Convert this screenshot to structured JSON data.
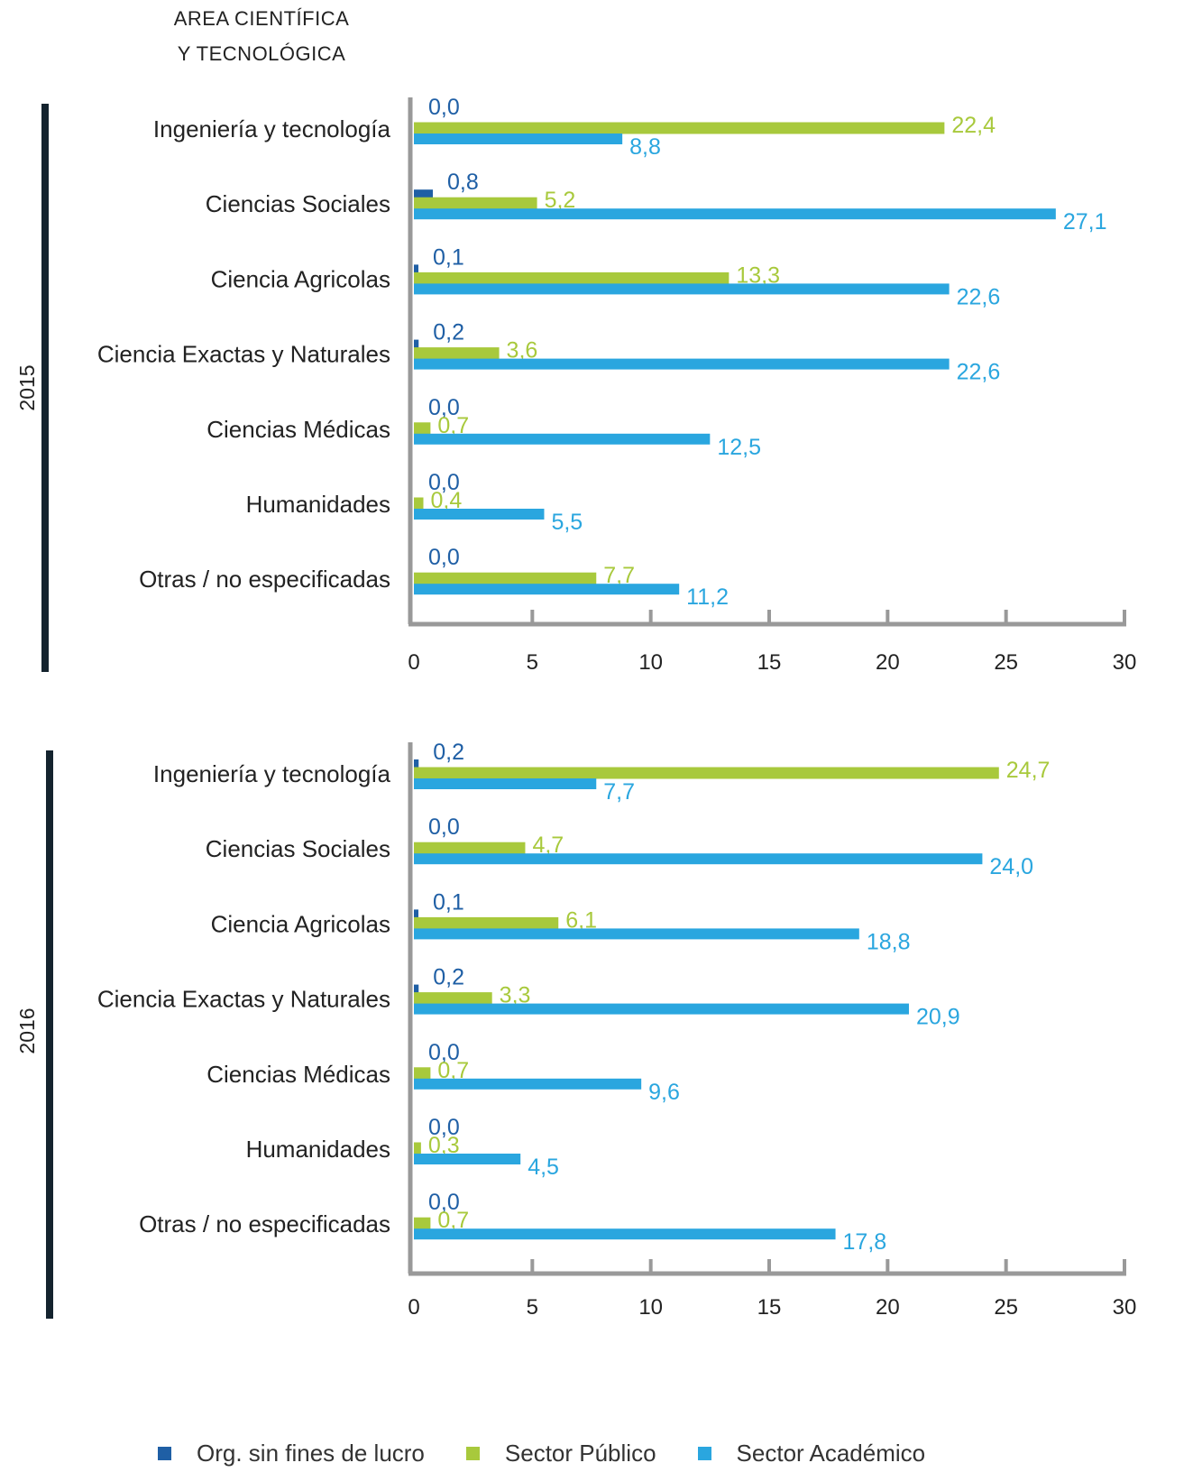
{
  "header": {
    "line1": "AREA CIENTÍFICA",
    "line2": "Y TECNOLÓGICA"
  },
  "colors": {
    "org": "#1f5fa5",
    "publico": "#a8c93c",
    "academico": "#2aa6df",
    "axis": "#999999",
    "year_bar": "#14232e"
  },
  "chart_data": [
    {
      "type": "bar",
      "orientation": "horizontal",
      "year": "2015",
      "categories": [
        "Ingeniería y tecnología",
        "Ciencias Sociales",
        "Ciencia Agricolas",
        "Ciencia Exactas y Naturales",
        "Ciencias Médicas",
        "Humanidades",
        "Otras / no especificadas"
      ],
      "series": [
        {
          "name": "Org. sin fines de lucro",
          "values": [
            0.0,
            0.8,
            0.1,
            0.2,
            0.0,
            0.0,
            0.0
          ],
          "labels": [
            "0,0",
            "0,8",
            "0,1",
            "0,2",
            "0,0",
            "0,0",
            "0,0"
          ]
        },
        {
          "name": "Sector Público",
          "values": [
            22.4,
            5.2,
            13.3,
            3.6,
            0.7,
            0.4,
            7.7
          ],
          "labels": [
            "22,4",
            "5,2",
            "13,3",
            "3,6",
            "0,7",
            "0,4",
            "7,7"
          ]
        },
        {
          "name": "Sector Académico",
          "values": [
            8.8,
            27.1,
            22.6,
            22.6,
            12.5,
            5.5,
            11.2
          ],
          "labels": [
            "8,8",
            "27,1",
            "22,6",
            "22,6",
            "12,5",
            "5,5",
            "11,2"
          ]
        }
      ],
      "xlim": [
        0,
        30
      ],
      "xticks": [
        "0",
        "5",
        "10",
        "15",
        "20",
        "25",
        "30"
      ],
      "grid": false,
      "legend": "bottom"
    },
    {
      "type": "bar",
      "orientation": "horizontal",
      "year": "2016",
      "categories": [
        "Ingeniería y tecnología",
        "Ciencias Sociales",
        "Ciencia Agricolas",
        "Ciencia Exactas y Naturales",
        "Ciencias Médicas",
        "Humanidades",
        "Otras / no especificadas"
      ],
      "series": [
        {
          "name": "Org. sin fines de lucro",
          "values": [
            0.2,
            0.0,
            0.1,
            0.2,
            0.0,
            0.0,
            0.0
          ],
          "labels": [
            "0,2",
            "0,0",
            "0,1",
            "0,2",
            "0,0",
            "0,0",
            "0,0"
          ]
        },
        {
          "name": "Sector Público",
          "values": [
            24.7,
            4.7,
            6.1,
            3.3,
            0.7,
            0.3,
            0.7
          ],
          "labels": [
            "24,7",
            "4,7",
            "6,1",
            "3,3",
            "0,7",
            "0,3",
            "0,7"
          ]
        },
        {
          "name": "Sector Académico",
          "values": [
            7.7,
            24.0,
            18.8,
            20.9,
            9.6,
            4.5,
            17.8
          ],
          "labels": [
            "7,7",
            "24,0",
            "18,8",
            "20,9",
            "9,6",
            "4,5",
            "17,8"
          ]
        }
      ],
      "xlim": [
        0,
        30
      ],
      "xticks": [
        "0",
        "5",
        "10",
        "15",
        "20",
        "25",
        "30"
      ],
      "grid": false,
      "legend": "bottom"
    }
  ],
  "legend": {
    "items": [
      "Org. sin fines de lucro",
      "Sector Público",
      "Sector Académico"
    ]
  }
}
